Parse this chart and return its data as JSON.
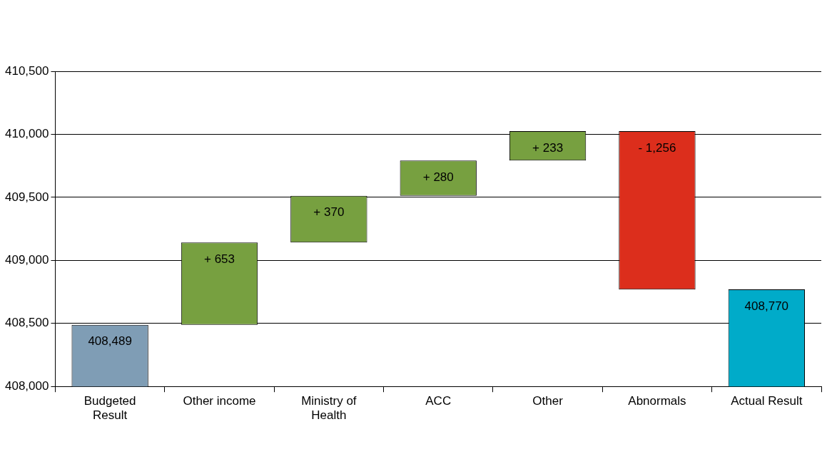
{
  "chart_data": {
    "type": "bar",
    "categories": [
      [
        "Budgeted",
        "Result"
      ],
      "Other income",
      [
        "Ministry of",
        "Health"
      ],
      "ACC",
      "Other",
      "Abnormals",
      "Actual Result"
    ],
    "values": [
      408489,
      653,
      370,
      280,
      233,
      -1256,
      408770
    ],
    "base": [
      null,
      408489,
      409142,
      409512,
      409792,
      410025,
      null
    ],
    "colors": [
      "#7f9db5",
      "#77a040",
      "#77a040",
      "#77a040",
      "#77a040",
      "#dc2e1c",
      "#00abc9"
    ],
    "value_labels": [
      "408,489",
      "+ 653",
      "+ 370",
      "+ 280",
      "+ 233",
      "- 1,256",
      "408,770"
    ],
    "ylim": [
      408000,
      410500
    ],
    "yticks": [
      {
        "value": 408000,
        "label": "408,000"
      },
      {
        "value": 408500,
        "label": "408,500"
      },
      {
        "value": 409000,
        "label": "409,000"
      },
      {
        "value": 409500,
        "label": "409,500"
      },
      {
        "value": 410000,
        "label": "410,000"
      },
      {
        "value": 410500,
        "label": "410,500"
      }
    ],
    "grid": "y",
    "legend": false
  }
}
